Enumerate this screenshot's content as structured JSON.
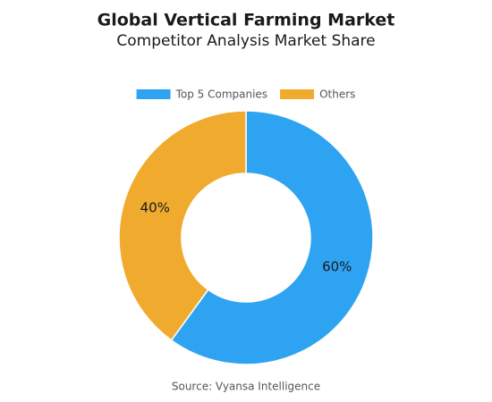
{
  "chart_data": {
    "type": "donut",
    "title": "Global Vertical Farming Market",
    "subtitle": "Competitor Analysis Market Share",
    "categories": [
      "Top 5 Companies",
      "Others"
    ],
    "values": [
      60,
      40
    ],
    "value_labels": [
      "60%",
      "40%"
    ],
    "colors": [
      "#2ea3f2",
      "#f0aa2e"
    ],
    "legend": "top",
    "source": "Source: Vyansa Intelligence"
  }
}
